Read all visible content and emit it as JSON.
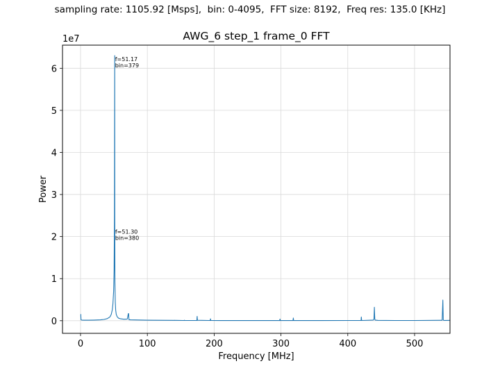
{
  "suptitle": "sampling rate: 1105.92 [Msps],  bin: 0-4095,  FFT size: 8192,  Freq res: 135.0 [KHz]",
  "chart_data": {
    "type": "line",
    "title": "AWG_6 step_1 frame_0 FFT",
    "xlabel": "Frequency [MHz]",
    "ylabel": "Power",
    "y_scale_label": "1e7",
    "xlim": [
      -27,
      553
    ],
    "ylim": [
      -3000000,
      65500000
    ],
    "xticks": [
      0,
      100,
      200,
      300,
      400,
      500
    ],
    "xtick_labels": [
      "0",
      "100",
      "200",
      "300",
      "400",
      "500"
    ],
    "yticks": [
      0,
      10000000,
      20000000,
      30000000,
      40000000,
      50000000,
      60000000
    ],
    "ytick_labels": [
      "0",
      "1",
      "2",
      "3",
      "4",
      "5",
      "6"
    ],
    "grid": true,
    "line_color": "#1f77b4",
    "series": [
      {
        "x": [
          0,
          0.3,
          0.8,
          2,
          5,
          10,
          20,
          30,
          35,
          40,
          44,
          46,
          47.5,
          48.5,
          49.5,
          50.2,
          50.7,
          51.0,
          51.17,
          51.3,
          51.5,
          52.0,
          52.6,
          53.5,
          55,
          57,
          60,
          65,
          70,
          71.5,
          72,
          72.5,
          75,
          100,
          140,
          140.6,
          141,
          155,
          155.5,
          156,
          174,
          174.5,
          175,
          194,
          194.5,
          195,
          210,
          260,
          298,
          298.5,
          299,
          318,
          318.5,
          319,
          360,
          400,
          419.8,
          420.3,
          420.8,
          438,
          439.2,
          439.8,
          440.4,
          441,
          445,
          470,
          500,
          541.3,
          542.3,
          542.9,
          543.5,
          545,
          553
        ],
        "y": [
          1500000,
          1500000,
          200000,
          150000,
          120000,
          120000,
          150000,
          200000,
          300000,
          500000,
          900000,
          1500000,
          2600000,
          4000000,
          7000000,
          12000000,
          25000000,
          45000000,
          63000000,
          22000000,
          9000000,
          4500000,
          2500000,
          1500000,
          900000,
          600000,
          450000,
          350000,
          400000,
          1700000,
          1700000,
          250000,
          200000,
          120000,
          80000,
          100000,
          80000,
          60000,
          120000,
          60000,
          50000,
          1050000,
          100000,
          50000,
          450000,
          50000,
          40000,
          40000,
          40000,
          400000,
          40000,
          40000,
          650000,
          40000,
          40000,
          50000,
          50000,
          900000,
          50000,
          150000,
          400000,
          3200000,
          400000,
          150000,
          80000,
          60000,
          60000,
          100000,
          4900000,
          200000,
          80000,
          70000,
          80000
        ]
      }
    ],
    "annotations": [
      {
        "line1": "f=51.17",
        "line2": "bin=379",
        "x": 51.17,
        "y": 63000000
      },
      {
        "line1": "f=51.30",
        "line2": "bin=380",
        "x": 51.3,
        "y": 22000000
      }
    ]
  }
}
